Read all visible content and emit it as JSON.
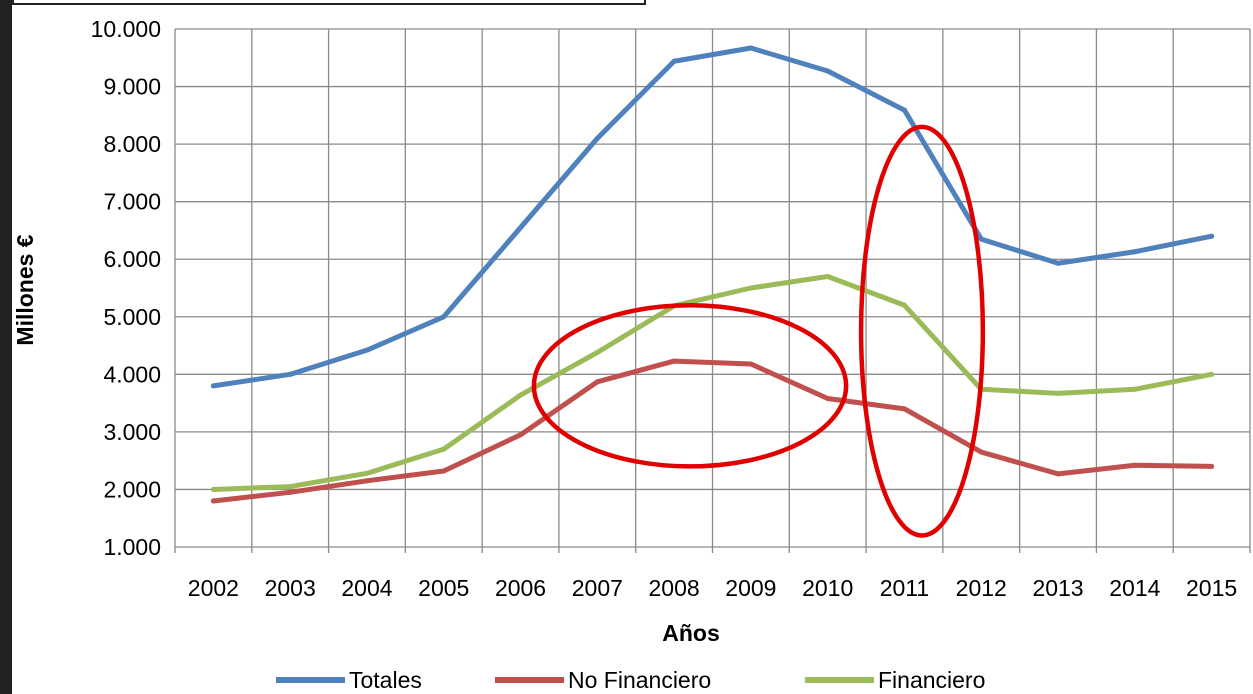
{
  "chart_data": {
    "type": "line",
    "x": [
      "2002",
      "2003",
      "2004",
      "2005",
      "2006",
      "2007",
      "2008",
      "2009",
      "2010",
      "2011",
      "2012",
      "2013",
      "2014",
      "2015"
    ],
    "xlabel": "Años",
    "ylabel": "Millones  €",
    "ylim": [
      1000,
      10000
    ],
    "yticks": [
      1000,
      2000,
      3000,
      4000,
      5000,
      6000,
      7000,
      8000,
      9000,
      10000
    ],
    "ytick_labels": [
      "1.000",
      "2.000",
      "3.000",
      "4.000",
      "5.000",
      "6.000",
      "7.000",
      "8.000",
      "9.000",
      "10.000"
    ],
    "grid": true,
    "legend_position": "bottom",
    "series": [
      {
        "name": "Totales",
        "color": "#4f81bd",
        "values": [
          3800,
          4000,
          4420,
          5000,
          6550,
          8100,
          9440,
          9670,
          9270,
          8590,
          6350,
          5930,
          6130,
          6400
        ]
      },
      {
        "name": "No Financiero",
        "color": "#c0504d",
        "values": [
          1800,
          1950,
          2150,
          2320,
          2950,
          3870,
          4230,
          4180,
          3580,
          3400,
          2650,
          2270,
          2420,
          2400
        ]
      },
      {
        "name": "Financiero",
        "color": "#9bbb59",
        "values": [
          2000,
          2050,
          2280,
          2700,
          3640,
          4380,
          5190,
          5500,
          5700,
          5200,
          3740,
          3670,
          3740,
          4000
        ]
      }
    ],
    "annotations": [
      {
        "shape": "ellipse",
        "color": "#e00000",
        "center": [
          "2008/2009",
          3850
        ],
        "spans_x": [
          "2007",
          "2010"
        ],
        "spans_y": [
          2400,
          5200
        ]
      },
      {
        "shape": "ellipse",
        "color": "#e00000",
        "center": [
          "2011",
          4730
        ],
        "spans_x": [
          "2011",
          "2012"
        ],
        "spans_y": [
          1200,
          8300
        ]
      }
    ]
  }
}
